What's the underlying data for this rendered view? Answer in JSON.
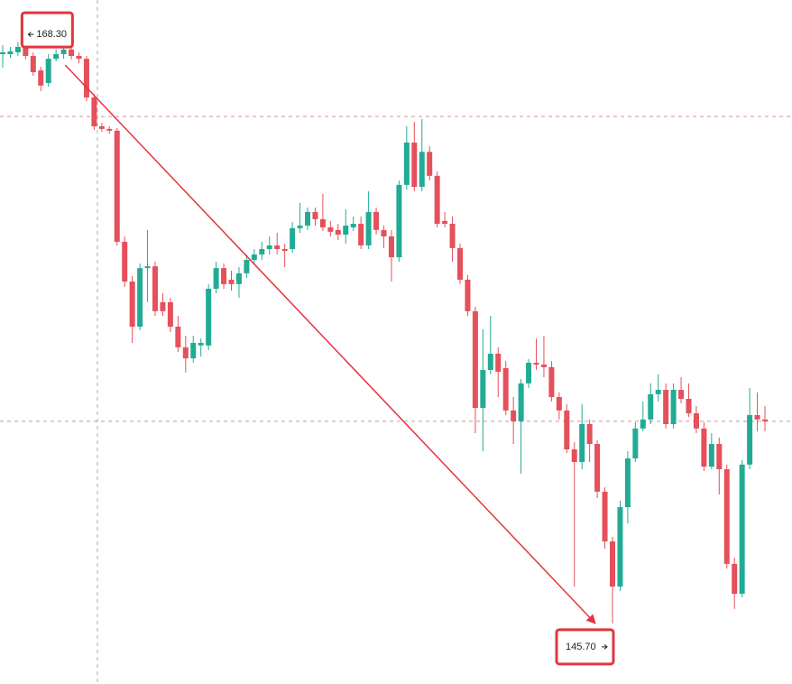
{
  "chart_data": {
    "type": "candlestick",
    "open": [
      167.78,
      167.78,
      167.85,
      168.24,
      167.71,
      167.15,
      166.66,
      167.6,
      167.78,
      167.96,
      167.71,
      167.6,
      166.1,
      164.98,
      164.88,
      164.81,
      160.5,
      158.96,
      157.21,
      159.48,
      159.55,
      158.16,
      158.16,
      157.21,
      156.41,
      155.98,
      156.48,
      156.48,
      158.68,
      159.48,
      159.03,
      158.86,
      159.28,
      159.8,
      160.01,
      160.22,
      160.36,
      160.22,
      160.22,
      161.03,
      161.13,
      161.66,
      161.38,
      161.06,
      160.96,
      160.78,
      161.06,
      161.2,
      160.36,
      161.66,
      160.96,
      160.71,
      159.9,
      162.71,
      164.35,
      162.63,
      163.99,
      163.06,
      161.31,
      161.2,
      160.26,
      159.03,
      157.81,
      154.06,
      155.53,
      156.16,
      155.6,
      153.96,
      153.54,
      155.01,
      155.81,
      155.74,
      155.64,
      154.48,
      153.96,
      152.45,
      151.96,
      153.43,
      152.66,
      150.81,
      148.88,
      147.13,
      150.21,
      152.1,
      153.26,
      153.61,
      154.59,
      154.76,
      153.43,
      154.76,
      154.41,
      153.85,
      153.26,
      151.78,
      152.66,
      151.68,
      148.01,
      146.85,
      151.86,
      153.78,
      153.61
    ],
    "high": [
      168.13,
      168.06,
      168.24,
      168.3,
      167.85,
      167.29,
      167.78,
      167.96,
      168.13,
      168.2,
      167.85,
      167.71,
      166.24,
      165.12,
      164.98,
      164.91,
      160.71,
      159.17,
      159.66,
      160.96,
      159.73,
      158.51,
      158.33,
      157.63,
      156.86,
      156.86,
      156.75,
      158.86,
      159.73,
      159.66,
      159.38,
      159.52,
      160.01,
      160.22,
      160.5,
      160.71,
      160.85,
      160.43,
      161.27,
      162.01,
      161.83,
      161.83,
      162.36,
      161.31,
      161.2,
      161.76,
      161.48,
      161.48,
      162.46,
      161.83,
      161.13,
      160.96,
      162.88,
      164.98,
      165.16,
      165.26,
      164.21,
      163.23,
      161.66,
      161.48,
      160.43,
      159.21,
      157.98,
      157.11,
      157.63,
      156.41,
      155.88,
      154.48,
      155.18,
      155.95,
      156.75,
      156.86,
      155.88,
      154.66,
      154.2,
      152.73,
      154.2,
      153.61,
      152.8,
      150.98,
      149.06,
      150.46,
      152.38,
      153.5,
      154.31,
      155.01,
      155.36,
      155.01,
      155.01,
      155.25,
      155.01,
      154.13,
      153.5,
      153.08,
      152.91,
      151.86,
      148.25,
      152.03,
      154.83,
      154.66,
      154.13
    ],
    "low": [
      167.26,
      167.64,
      167.71,
      167.57,
      166.94,
      166.35,
      166.52,
      167.5,
      167.6,
      167.57,
      167.43,
      165.96,
      164.84,
      164.77,
      164.7,
      160.36,
      158.75,
      156.58,
      157.07,
      158.16,
      157.63,
      157.63,
      157.0,
      156.23,
      155.43,
      155.81,
      156.05,
      156.3,
      158.51,
      158.68,
      158.61,
      158.33,
      159.1,
      159.66,
      159.8,
      160.01,
      160.01,
      159.52,
      160.08,
      160.85,
      160.96,
      161.13,
      160.92,
      160.71,
      160.57,
      160.43,
      160.92,
      160.22,
      160.22,
      160.78,
      160.26,
      158.96,
      159.73,
      162.53,
      162.46,
      162.46,
      162.88,
      161.06,
      161.06,
      159.73,
      158.86,
      157.63,
      153.08,
      152.38,
      155.36,
      154.48,
      153.78,
      152.66,
      151.51,
      154.83,
      155.53,
      155.25,
      154.31,
      153.61,
      152.31,
      147.13,
      151.68,
      151.96,
      150.56,
      148.6,
      145.7,
      146.96,
      149.58,
      151.96,
      153.15,
      153.43,
      154.31,
      153.26,
      153.26,
      154.24,
      153.71,
      153.08,
      151.61,
      151.68,
      150.7,
      147.83,
      146.26,
      146.71,
      151.68,
      153.15,
      153.15
    ],
    "close": [
      167.85,
      167.89,
      168.06,
      167.71,
      167.08,
      166.56,
      167.6,
      167.78,
      167.96,
      167.71,
      167.6,
      166.1,
      164.98,
      164.88,
      164.81,
      160.5,
      158.96,
      157.21,
      159.48,
      159.55,
      157.81,
      157.81,
      157.21,
      156.41,
      155.98,
      156.58,
      156.58,
      158.68,
      159.48,
      158.86,
      158.86,
      159.28,
      159.8,
      160.01,
      160.22,
      160.36,
      160.22,
      160.15,
      161.03,
      161.13,
      161.66,
      161.38,
      161.06,
      160.89,
      160.78,
      161.13,
      161.2,
      160.36,
      161.66,
      160.96,
      160.71,
      159.9,
      162.71,
      164.35,
      162.63,
      163.99,
      163.06,
      161.2,
      161.2,
      160.26,
      159.03,
      157.81,
      154.06,
      155.53,
      156.16,
      155.46,
      153.96,
      153.54,
      155.01,
      155.81,
      155.74,
      155.64,
      154.48,
      153.96,
      152.45,
      151.96,
      153.43,
      152.66,
      150.81,
      148.88,
      147.13,
      150.21,
      152.1,
      153.26,
      153.61,
      154.59,
      154.76,
      153.43,
      154.76,
      154.41,
      153.85,
      153.26,
      151.78,
      152.66,
      151.68,
      148.01,
      146.85,
      151.86,
      153.78,
      153.61,
      153.54
    ],
    "up_color": "#22ab94",
    "down_color": "#e5505a",
    "ylim": [
      143.35,
      169.88
    ],
    "price_lines": [
      165.36,
      153.54
    ],
    "price_line_color": "#d4939a",
    "high_label": {
      "value": 168.3,
      "label": "168.30"
    },
    "low_label": {
      "value": 145.7,
      "label": "145.70"
    },
    "marker_color": "#e3343f"
  }
}
